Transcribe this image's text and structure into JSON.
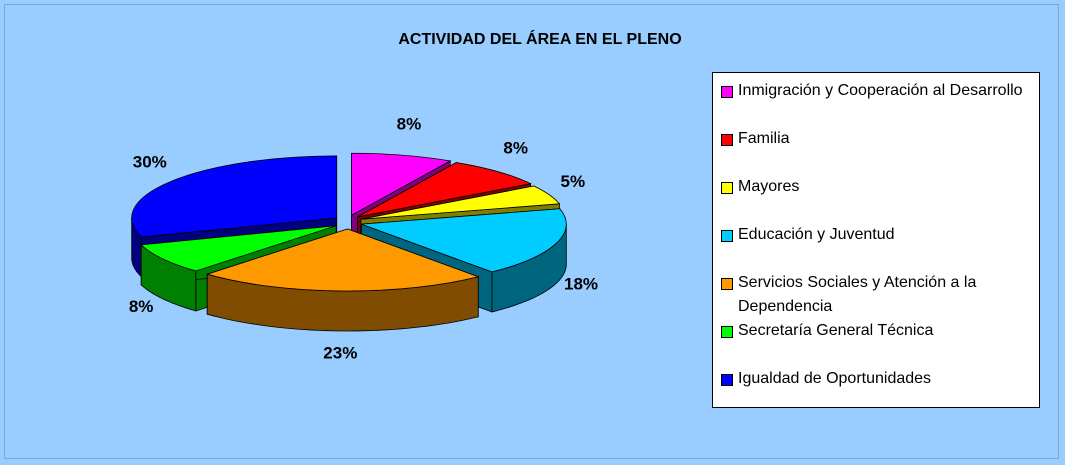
{
  "chart_data": {
    "type": "pie",
    "title": "ACTIVIDAD DEL ÁREA EN EL PLENO",
    "categories": [
      "Inmigración y Cooperación al Desarrollo",
      "Familia",
      "Mayores",
      "Educación y Juventud",
      "Servicios Sociales y Atención a la Dependencia",
      "Secretaría General Técnica",
      "Igualdad de Oportunidades"
    ],
    "values": [
      8,
      8,
      5,
      18,
      23,
      8,
      30
    ],
    "value_labels": [
      "8%",
      "8%",
      "5%",
      "18%",
      "23%",
      "8%",
      "30%"
    ],
    "colors": [
      "#ff00ff",
      "#ff0000",
      "#ffff00",
      "#00ccff",
      "#ff9900",
      "#00ff00",
      "#0000ff"
    ],
    "legend": "right"
  }
}
